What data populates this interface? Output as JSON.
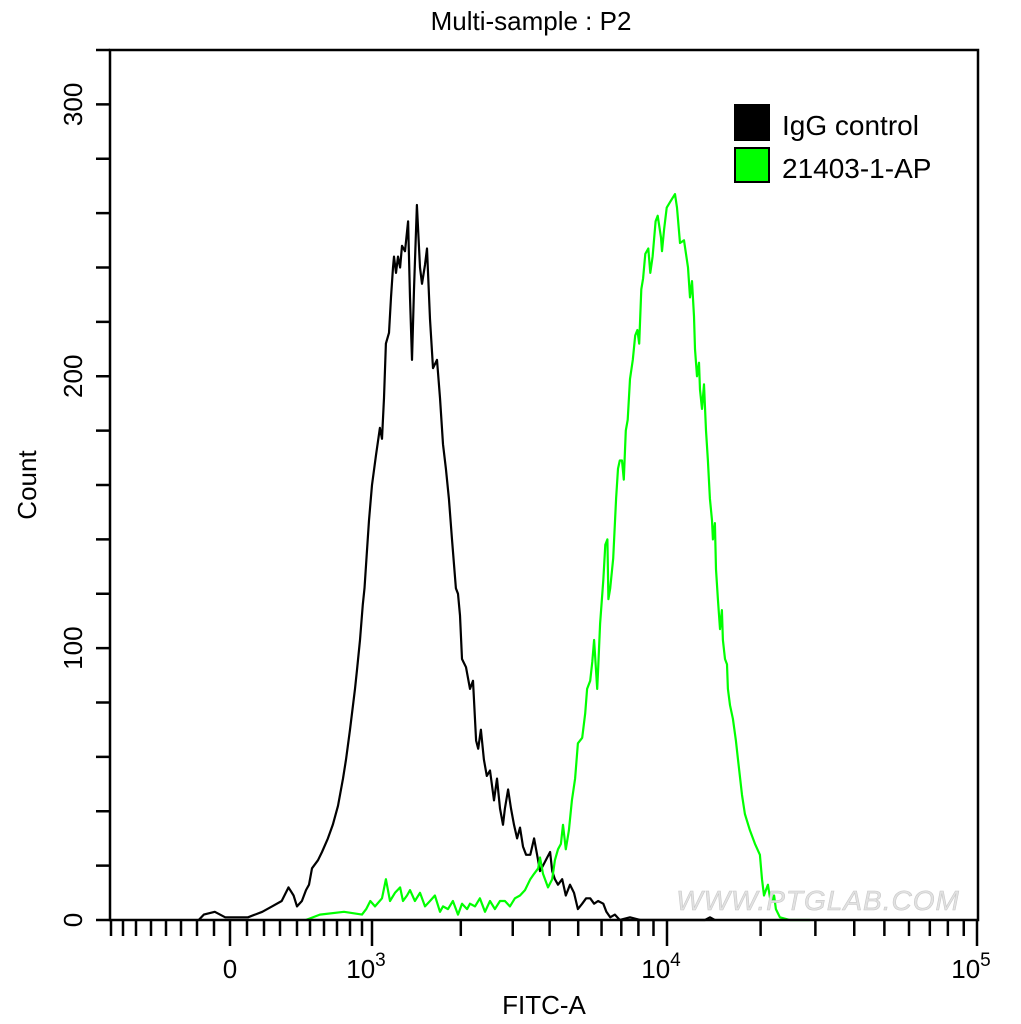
{
  "chart_data": {
    "type": "line",
    "title": "Multi-sample : P2",
    "xlabel": "FITC-A",
    "ylabel": "Count",
    "x_scale": "biexponential",
    "xlim": [
      -850,
      100000
    ],
    "ylim": [
      0,
      320
    ],
    "grid": false,
    "legend_position": "top-right",
    "x_ticks": [
      {
        "value": 0,
        "label": "0"
      },
      {
        "value": 1000,
        "label": "10",
        "exp": "3"
      },
      {
        "value": 10000,
        "label": "10",
        "exp": "4"
      },
      {
        "value": 100000,
        "label": "10",
        "exp": "5"
      }
    ],
    "y_ticks": [
      {
        "value": 0,
        "label": "0"
      },
      {
        "value": 100,
        "label": "100"
      },
      {
        "value": 200,
        "label": "200"
      },
      {
        "value": 300,
        "label": "300"
      }
    ],
    "y_minor_step": 20,
    "watermark": "WWW.PTGLAB.COM",
    "series": [
      {
        "name": "IgG control",
        "color": "#000000",
        "x": [
          -190,
          -160,
          -95,
          -30,
          12,
          106,
          190,
          250,
          310,
          350,
          380,
          400,
          438,
          469,
          492,
          514,
          557,
          586,
          630,
          668,
          708,
          746,
          769,
          800,
          842,
          858,
          883,
          908,
          925,
          950,
          970,
          1000,
          1032,
          1064,
          1081,
          1098,
          1115,
          1142,
          1160,
          1178,
          1187,
          1206,
          1225,
          1245,
          1264,
          1294,
          1325,
          1345,
          1366,
          1388,
          1420,
          1455,
          1477,
          1512,
          1536,
          1572,
          1610,
          1661,
          1700,
          1740,
          1781,
          1823,
          1867,
          1925,
          1956,
          1987,
          2019,
          2083,
          2149,
          2200,
          2253,
          2290,
          2340,
          2396,
          2450,
          2512,
          2591,
          2652,
          2716,
          2780,
          2822,
          2894,
          2960,
          3030,
          3104,
          3175,
          3250,
          3330,
          3440,
          3545,
          3629,
          3711,
          3800,
          3925,
          4014,
          4082,
          4170,
          4270,
          4414,
          4540,
          4690,
          4840,
          4990,
          5160,
          5320,
          5490,
          5660,
          5840,
          6080,
          6230,
          6420,
          6660,
          6920,
          7490,
          8110,
          9450,
          13250,
          13750,
          14240
        ],
        "y": [
          0,
          2,
          3,
          1,
          1,
          1,
          3,
          5,
          7,
          12,
          9,
          5,
          7,
          11,
          13,
          19,
          22,
          25,
          30,
          35,
          42,
          52,
          59,
          70,
          85,
          92,
          103,
          116,
          122,
          136,
          147,
          160,
          171,
          181,
          177,
          192,
          212,
          216,
          229,
          240,
          244,
          238,
          244,
          240,
          248,
          246,
          257,
          229,
          206,
          232,
          263,
          240,
          234,
          241,
          247,
          221,
          203,
          206,
          192,
          175,
          166,
          155,
          140,
          122,
          120,
          112,
          96,
          93,
          85,
          88,
          66,
          63,
          70,
          59,
          53,
          55,
          44,
          52,
          41,
          35,
          41,
          48,
          41,
          35,
          30,
          34,
          27,
          24,
          24,
          30,
          24,
          18,
          20,
          23,
          25,
          18,
          15,
          13,
          15,
          9,
          13,
          10,
          4,
          6,
          8,
          8,
          6,
          7,
          6,
          3,
          1,
          2,
          0,
          1,
          0,
          0,
          0,
          1,
          0
        ]
      },
      {
        "name": "21403-1-AP",
        "color": "#00ff00",
        "x": [
          468,
          571,
          754,
          900,
          942,
          983,
          1024,
          1081,
          1115,
          1151,
          1197,
          1245,
          1274,
          1314,
          1345,
          1398,
          1455,
          1512,
          1572,
          1634,
          1700,
          1740,
          1810,
          1880,
          1956,
          2019,
          2100,
          2149,
          2235,
          2322,
          2415,
          2512,
          2610,
          2716,
          2822,
          2935,
          3050,
          3175,
          3300,
          3440,
          3545,
          3660,
          3711,
          3800,
          3950,
          4082,
          4170,
          4270,
          4370,
          4440,
          4540,
          4650,
          4760,
          4880,
          4990,
          5160,
          5280,
          5360,
          5490,
          5580,
          5660,
          5800,
          5840,
          5930,
          6080,
          6180,
          6280,
          6330,
          6420,
          6570,
          6720,
          6820,
          6920,
          7040,
          7140,
          7250,
          7360,
          7490,
          7660,
          7800,
          7940,
          8050,
          8180,
          8300,
          8440,
          8640,
          8780,
          8940,
          9150,
          9300,
          9540,
          9620,
          9780,
          9980,
          10220,
          10610,
          10770,
          11010,
          11340,
          11680,
          11860,
          12030,
          12210,
          12300,
          12490,
          12670,
          12770,
          12960,
          13150,
          13350,
          13540,
          13740,
          13950,
          14050,
          14260,
          14370,
          14580,
          14800,
          15020,
          15130,
          15360,
          15590,
          15700,
          15940,
          16290,
          16660,
          16910,
          17430,
          17800,
          18480,
          19190,
          19900,
          20200,
          20500,
          20800,
          21100,
          21450,
          21760,
          22100,
          22400,
          23070,
          24850,
          28800
        ],
        "y": [
          0,
          2,
          3,
          2,
          4,
          7,
          5,
          8,
          15,
          7,
          10,
          12,
          7,
          9,
          11,
          7,
          10,
          5,
          7,
          9,
          3,
          5,
          4,
          7,
          2,
          6,
          4,
          6,
          5,
          8,
          3,
          7,
          4,
          7,
          7,
          5,
          8,
          9,
          11,
          15,
          17,
          19,
          23,
          17,
          12,
          15,
          22,
          26,
          28,
          35,
          26,
          33,
          44,
          52,
          65,
          67,
          76,
          85,
          88,
          95,
          103,
          85,
          92,
          109,
          125,
          138,
          140,
          118,
          122,
          133,
          155,
          166,
          169,
          169,
          162,
          180,
          184,
          199,
          206,
          215,
          217,
          212,
          232,
          236,
          245,
          247,
          238,
          244,
          257,
          259,
          251,
          246,
          254,
          262,
          264,
          267,
          262,
          249,
          250,
          240,
          229,
          235,
          222,
          210,
          200,
          205,
          195,
          188,
          197,
          180,
          169,
          155,
          147,
          140,
          146,
          129,
          118,
          107,
          114,
          103,
          96,
          94,
          85,
          79,
          74,
          66,
          59,
          46,
          39,
          33,
          28,
          24,
          15,
          9,
          11,
          13,
          8,
          7,
          9,
          4,
          1,
          0,
          0
        ]
      }
    ]
  }
}
